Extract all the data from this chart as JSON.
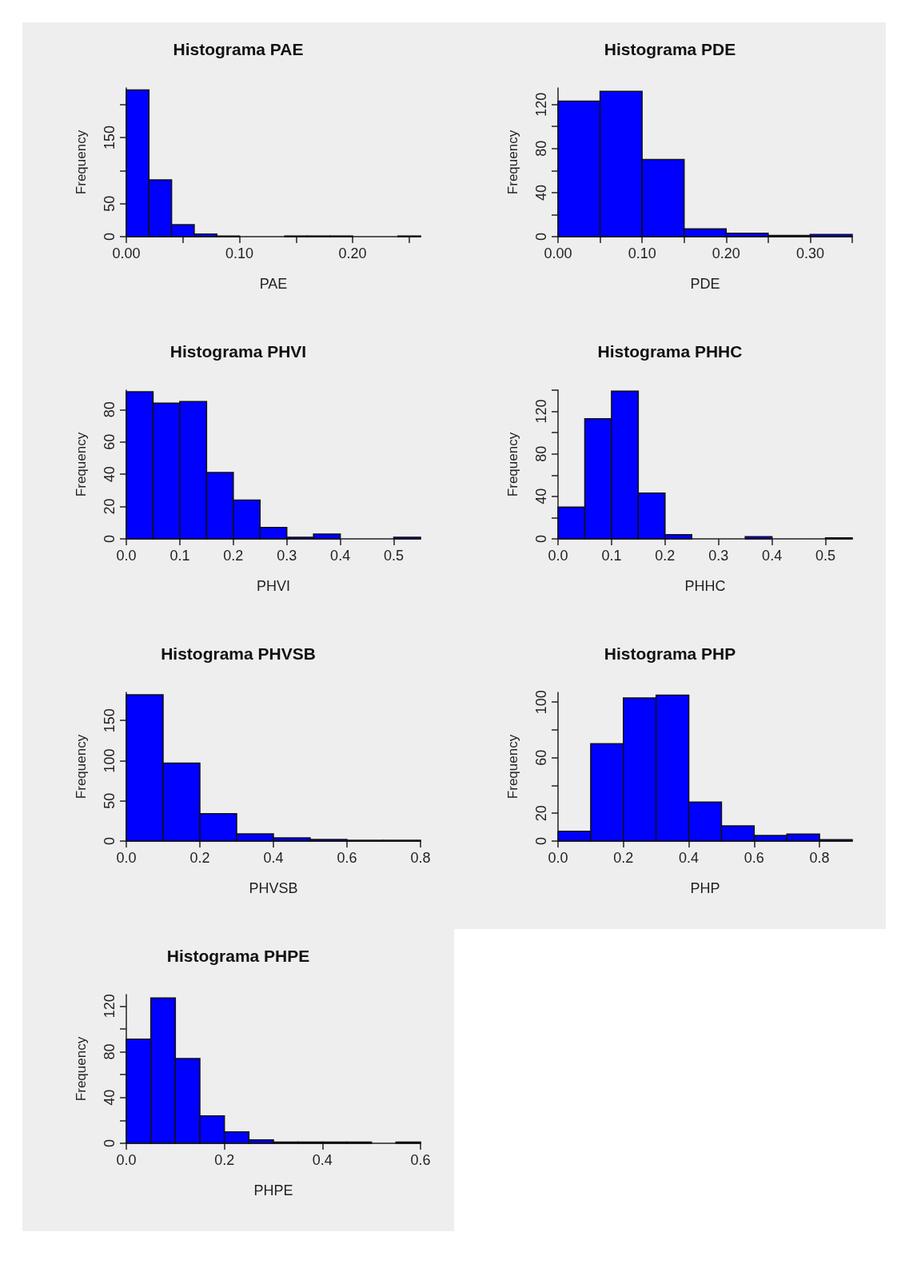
{
  "chart_data": [
    {
      "type": "histogram",
      "title": "Histograma PAE",
      "xlabel": "PAE",
      "ylabel": "Frequency",
      "color": "#0000ff",
      "grid": false,
      "bins": [
        0,
        0.02,
        0.04,
        0.06,
        0.08,
        0.1,
        0.12,
        0.14,
        0.16,
        0.18,
        0.2,
        0.22,
        0.24,
        0.26
      ],
      "values": [
        222,
        86,
        18,
        4,
        1,
        0,
        0,
        1,
        1,
        1,
        0,
        0,
        1
      ],
      "xlim": [
        0,
        0.26
      ],
      "ylim": [
        0,
        225
      ],
      "xticks": [
        {
          "value": 0,
          "label": "0.00"
        },
        {
          "value": 0.05,
          "label": null
        },
        {
          "value": 0.1,
          "label": "0.10"
        },
        {
          "value": 0.15,
          "label": null
        },
        {
          "value": 0.2,
          "label": "0.20"
        },
        {
          "value": 0.25,
          "label": null
        }
      ],
      "yticks": [
        0,
        50,
        {
          "value": 100,
          "label": null
        },
        150,
        {
          "value": 200,
          "label": null
        }
      ]
    },
    {
      "type": "histogram",
      "title": "Histograma PDE",
      "xlabel": "PDE",
      "ylabel": "Frequency",
      "color": "#0000ff",
      "grid": false,
      "bins": [
        0,
        0.05,
        0.1,
        0.15,
        0.2,
        0.25,
        0.3,
        0.35
      ],
      "values": [
        123,
        132,
        70,
        7,
        3,
        1,
        2
      ],
      "xlim": [
        0,
        0.35
      ],
      "ylim": [
        0,
        135
      ],
      "xticks": [
        {
          "value": 0,
          "label": "0.00"
        },
        {
          "value": 0.05,
          "label": null
        },
        {
          "value": 0.1,
          "label": "0.10"
        },
        {
          "value": 0.15,
          "label": null
        },
        {
          "value": 0.2,
          "label": "0.20"
        },
        {
          "value": 0.25,
          "label": null
        },
        {
          "value": 0.3,
          "label": "0.30"
        },
        {
          "value": 0.35,
          "label": null
        }
      ],
      "yticks": [
        0,
        {
          "value": 20,
          "label": null
        },
        40,
        {
          "value": 60,
          "label": null
        },
        80,
        {
          "value": 100,
          "label": null
        },
        120
      ]
    },
    {
      "type": "histogram",
      "title": "Histograma PHVI",
      "xlabel": "PHVI",
      "ylabel": "Frequency",
      "color": "#0000ff",
      "grid": false,
      "bins": [
        0,
        0.05,
        0.1,
        0.15,
        0.2,
        0.25,
        0.3,
        0.35,
        0.4,
        0.45,
        0.5,
        0.55
      ],
      "values": [
        91,
        84,
        85,
        41,
        24,
        7,
        1,
        3,
        0,
        0,
        1
      ],
      "xlim": [
        0,
        0.55
      ],
      "ylim": [
        0,
        92
      ],
      "xticks": [
        {
          "value": 0,
          "label": "0.0"
        },
        {
          "value": 0.1,
          "label": "0.1"
        },
        {
          "value": 0.2,
          "label": "0.2"
        },
        {
          "value": 0.3,
          "label": "0.3"
        },
        {
          "value": 0.4,
          "label": "0.4"
        },
        {
          "value": 0.5,
          "label": "0.5"
        }
      ],
      "yticks": [
        0,
        20,
        40,
        60,
        80
      ]
    },
    {
      "type": "histogram",
      "title": "Histograma PHHC",
      "xlabel": "PHHC",
      "ylabel": "Frequency",
      "color": "#0000ff",
      "grid": false,
      "bins": [
        0,
        0.05,
        0.1,
        0.15,
        0.2,
        0.25,
        0.3,
        0.35,
        0.4,
        0.45,
        0.5,
        0.55
      ],
      "values": [
        30,
        113,
        139,
        43,
        4,
        0,
        0,
        2,
        0,
        0,
        1
      ],
      "xlim": [
        0,
        0.55
      ],
      "ylim": [
        0,
        140
      ],
      "xticks": [
        {
          "value": 0,
          "label": "0.0"
        },
        {
          "value": 0.1,
          "label": "0.1"
        },
        {
          "value": 0.2,
          "label": "0.2"
        },
        {
          "value": 0.3,
          "label": "0.3"
        },
        {
          "value": 0.4,
          "label": "0.4"
        },
        {
          "value": 0.5,
          "label": "0.5"
        }
      ],
      "yticks": [
        0,
        {
          "value": 20,
          "label": null
        },
        40,
        {
          "value": 60,
          "label": null
        },
        80,
        {
          "value": 100,
          "label": null
        },
        120,
        {
          "value": 140,
          "label": null
        }
      ]
    },
    {
      "type": "histogram",
      "title": "Histograma PHVSB",
      "xlabel": "PHVSB",
      "ylabel": "Frequency",
      "color": "#0000ff",
      "grid": false,
      "bins": [
        0,
        0.1,
        0.2,
        0.3,
        0.4,
        0.5,
        0.6,
        0.7,
        0.8
      ],
      "values": [
        182,
        97,
        34,
        9,
        4,
        2,
        1,
        1
      ],
      "xlim": [
        0,
        0.8
      ],
      "ylim": [
        0,
        185
      ],
      "xticks": [
        {
          "value": 0,
          "label": "0.0"
        },
        {
          "value": 0.2,
          "label": "0.2"
        },
        {
          "value": 0.4,
          "label": "0.4"
        },
        {
          "value": 0.6,
          "label": "0.6"
        },
        {
          "value": 0.8,
          "label": "0.8"
        }
      ],
      "yticks": [
        0,
        50,
        100,
        150
      ]
    },
    {
      "type": "histogram",
      "title": "Histograma PHP",
      "xlabel": "PHP",
      "ylabel": "Frequency",
      "color": "#0000ff",
      "grid": false,
      "bins": [
        0,
        0.1,
        0.2,
        0.3,
        0.4,
        0.5,
        0.6,
        0.7,
        0.8,
        0.9
      ],
      "values": [
        7,
        70,
        103,
        105,
        28,
        11,
        4,
        5,
        1
      ],
      "xlim": [
        0,
        0.9
      ],
      "ylim": [
        0,
        107
      ],
      "xticks": [
        {
          "value": 0,
          "label": "0.0"
        },
        {
          "value": 0.2,
          "label": "0.2"
        },
        {
          "value": 0.4,
          "label": "0.4"
        },
        {
          "value": 0.6,
          "label": "0.6"
        },
        {
          "value": 0.8,
          "label": "0.8"
        }
      ],
      "yticks": [
        0,
        20,
        {
          "value": 40,
          "label": null
        },
        60,
        {
          "value": 80,
          "label": null
        },
        100
      ]
    },
    {
      "type": "histogram",
      "title": "Histograma PHPE",
      "xlabel": "PHPE",
      "ylabel": "Frequency",
      "color": "#0000ff",
      "grid": false,
      "bins": [
        0,
        0.05,
        0.1,
        0.15,
        0.2,
        0.25,
        0.3,
        0.35,
        0.4,
        0.45,
        0.5,
        0.55,
        0.6
      ],
      "values": [
        91,
        127,
        74,
        24,
        10,
        3,
        1,
        1,
        1,
        1,
        0,
        1
      ],
      "xlim": [
        0,
        0.6
      ],
      "ylim": [
        0,
        130
      ],
      "xticks": [
        {
          "value": 0,
          "label": "0.0"
        },
        {
          "value": 0.2,
          "label": "0.2"
        },
        {
          "value": 0.4,
          "label": "0.4"
        },
        {
          "value": 0.6,
          "label": "0.6"
        }
      ],
      "yticks": [
        0,
        {
          "value": 20,
          "label": null
        },
        40,
        {
          "value": 60,
          "label": null
        },
        80,
        {
          "value": 100,
          "label": null
        },
        120
      ]
    }
  ]
}
